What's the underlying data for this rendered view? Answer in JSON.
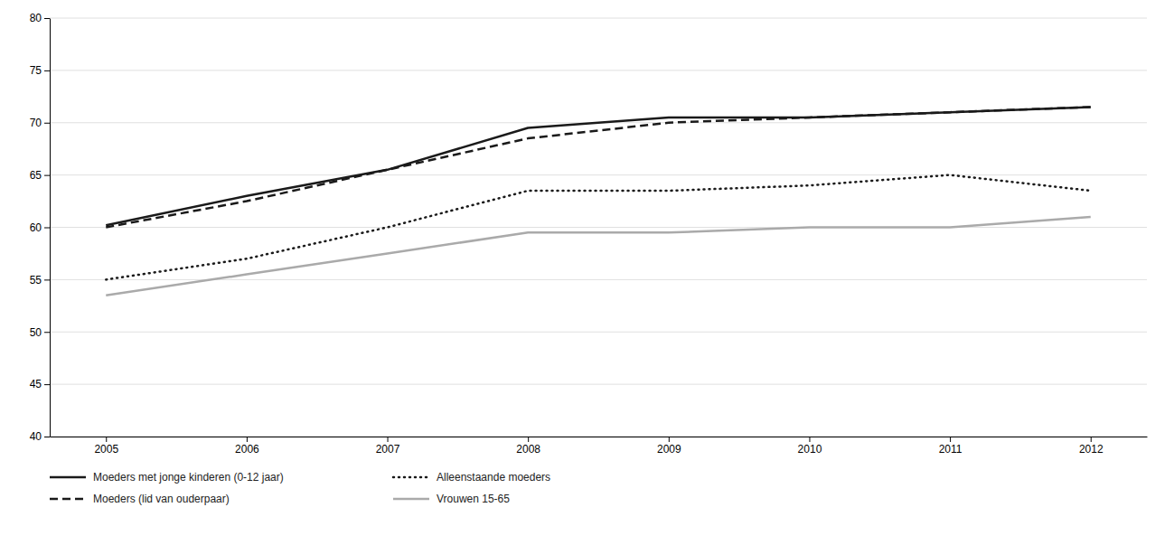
{
  "chart_data": {
    "type": "line",
    "x": [
      2005,
      2006,
      2007,
      2008,
      2009,
      2010,
      2011,
      2012
    ],
    "series": [
      {
        "name": "Moeders met jonge kinderen (0-12 jaar)",
        "color": "#1a1a1a",
        "line_style": "solid",
        "values": [
          60.2,
          63.0,
          65.5,
          69.5,
          70.5,
          70.5,
          71.0,
          71.5
        ]
      },
      {
        "name": "Alleenstaande moeders",
        "color": "#1a1a1a",
        "line_style": "dotted",
        "values": [
          55.0,
          57.0,
          60.0,
          63.5,
          63.5,
          64.0,
          65.0,
          63.5
        ]
      },
      {
        "name": "Moeders (lid van ouderpaar)",
        "color": "#1a1a1a",
        "line_style": "dashed",
        "values": [
          60.0,
          62.5,
          65.5,
          68.5,
          70.0,
          70.5,
          71.0,
          71.5
        ]
      },
      {
        "name": "Vrouwen 15-65",
        "color": "#aaaaaa",
        "line_style": "solid",
        "values": [
          53.5,
          55.5,
          57.5,
          59.5,
          59.5,
          60.0,
          60.0,
          61.0
        ]
      }
    ],
    "xlim": [
      2004.6,
      2012.4
    ],
    "xticks": [
      2005,
      2006,
      2007,
      2008,
      2009,
      2010,
      2011,
      2012
    ],
    "ylim": [
      40,
      80
    ],
    "yticks": [
      40,
      45,
      50,
      55,
      60,
      65,
      70,
      75,
      80
    ],
    "grid": true,
    "legend": "bottom"
  }
}
